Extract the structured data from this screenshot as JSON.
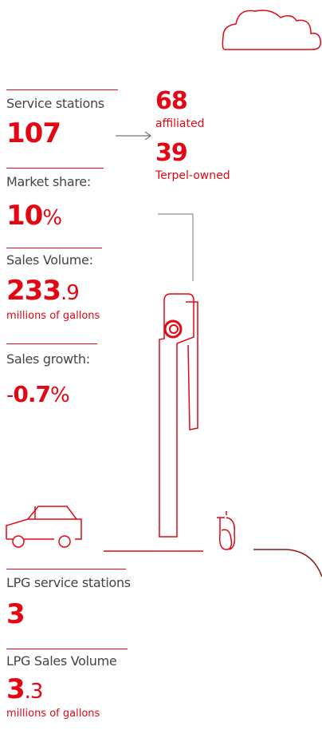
{
  "stats": [
    {
      "label": "Service stations",
      "number": "107"
    },
    {
      "label": "Market share:",
      "number": "10",
      "suffix": "%"
    },
    {
      "label": "Sales Volume:",
      "number": "233",
      "decimal": ".9",
      "unit": "millions of gallons"
    },
    {
      "label": "Sales growth:",
      "prefix": "-",
      "number": "0.7",
      "suffix": "%"
    },
    {
      "label": "LPG service stations",
      "number": "3"
    },
    {
      "label": "LPG Sales Volume",
      "number": "3",
      "decimal": ".3",
      "unit": "millions of gallons"
    }
  ],
  "breakdown": [
    {
      "number": "68",
      "label": "affiliated"
    },
    {
      "number": "39",
      "label": "Terpel-owned"
    }
  ]
}
